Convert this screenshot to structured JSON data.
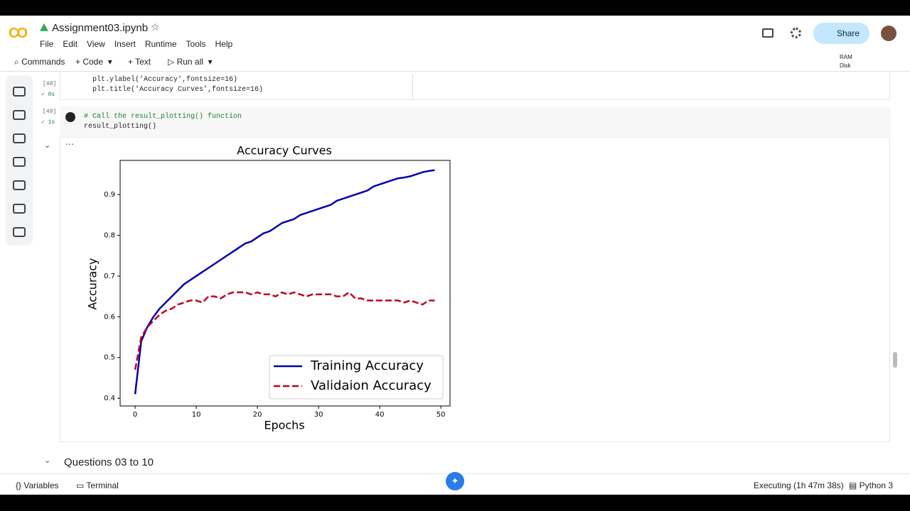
{
  "header": {
    "title": "Assignment03.ipynb",
    "menu": [
      "File",
      "Edit",
      "View",
      "Insert",
      "Runtime",
      "Tools",
      "Help"
    ],
    "share": "Share"
  },
  "toolbar": {
    "commands": "Commands",
    "code": "Code",
    "text": "Text",
    "run_all": "Run all",
    "ram": "RAM",
    "disk": "Disk"
  },
  "cells": [
    {
      "number": "[48]",
      "time": "0s",
      "code": [
        "plt.ylabel('Accuracy',fontsize=16)",
        "plt.title('Accuracy Curves',fontsize=16)"
      ]
    },
    {
      "number": "[49]",
      "time": "1s",
      "code": [
        "# Call the result_plotting() function",
        "result_plotting()"
      ]
    }
  ],
  "section": "Questions 03 to 10",
  "status": {
    "variables": "Variables",
    "terminal": "Terminal",
    "executing": "Executing (1h 47m 38s)",
    "runtime": "Python 3"
  },
  "chart_data": {
    "type": "line",
    "title": "Accuracy Curves",
    "x_label": "Epochs",
    "y_label": "Accuracy",
    "x": [
      0,
      1,
      2,
      3,
      4,
      5,
      6,
      7,
      8,
      9,
      10,
      11,
      12,
      13,
      14,
      15,
      16,
      17,
      18,
      19,
      20,
      21,
      22,
      23,
      24,
      25,
      26,
      27,
      28,
      29,
      30,
      31,
      32,
      33,
      34,
      35,
      36,
      37,
      38,
      39,
      40,
      41,
      42,
      43,
      44,
      45,
      46,
      47,
      48,
      49
    ],
    "series": [
      {
        "name": "Training Accuracy",
        "color": "#0000b0",
        "linestyle": "solid",
        "values": [
          0.41,
          0.54,
          0.575,
          0.6,
          0.62,
          0.635,
          0.65,
          0.665,
          0.68,
          0.69,
          0.7,
          0.71,
          0.72,
          0.73,
          0.74,
          0.75,
          0.76,
          0.77,
          0.78,
          0.785,
          0.795,
          0.805,
          0.81,
          0.82,
          0.83,
          0.835,
          0.84,
          0.85,
          0.855,
          0.86,
          0.865,
          0.87,
          0.875,
          0.885,
          0.89,
          0.895,
          0.9,
          0.905,
          0.91,
          0.92,
          0.925,
          0.93,
          0.935,
          0.94,
          0.942,
          0.945,
          0.95,
          0.955,
          0.958,
          0.96
        ]
      },
      {
        "name": "Validaion Accuracy",
        "color": "#c00018",
        "linestyle": "dashed",
        "values": [
          0.47,
          0.55,
          0.575,
          0.59,
          0.605,
          0.615,
          0.62,
          0.63,
          0.635,
          0.64,
          0.64,
          0.635,
          0.65,
          0.65,
          0.645,
          0.655,
          0.66,
          0.66,
          0.66,
          0.655,
          0.66,
          0.655,
          0.655,
          0.65,
          0.66,
          0.655,
          0.66,
          0.655,
          0.65,
          0.655,
          0.655,
          0.655,
          0.655,
          0.65,
          0.65,
          0.66,
          0.645,
          0.645,
          0.64,
          0.64,
          0.64,
          0.64,
          0.64,
          0.64,
          0.635,
          0.64,
          0.635,
          0.63,
          0.64,
          0.64
        ]
      }
    ],
    "xlim": [
      -2.45,
      51.5
    ],
    "ylim": [
      0.381,
      0.984
    ],
    "xticks": [
      0,
      10,
      20,
      30,
      40,
      50
    ],
    "yticks": [
      0.4,
      0.5,
      0.6,
      0.7,
      0.8,
      0.9
    ],
    "grid": false,
    "legend": "lower right"
  }
}
